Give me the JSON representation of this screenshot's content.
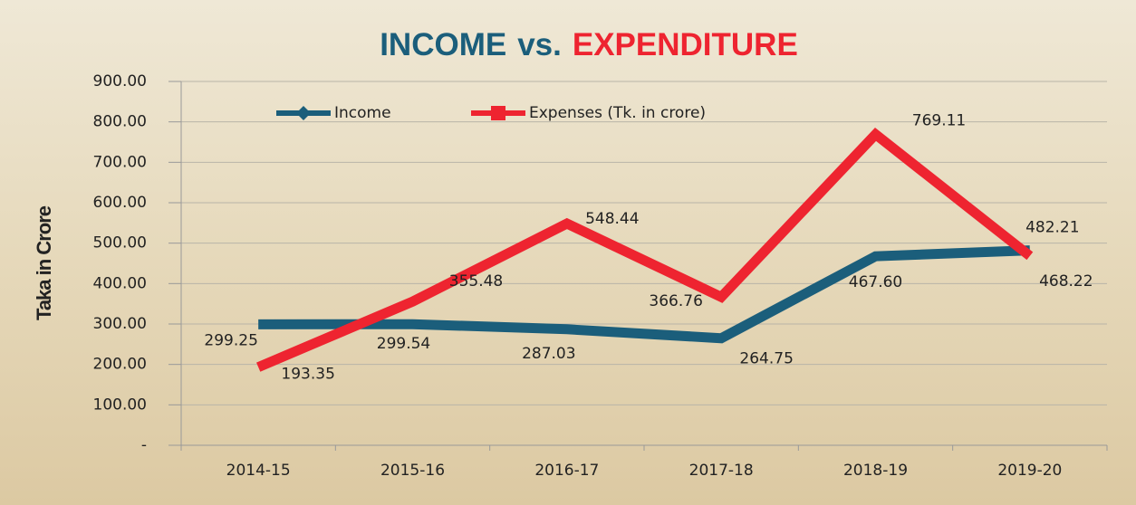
{
  "chart_data": {
    "type": "line",
    "title_parts": [
      {
        "text": "INCOME",
        "color": "#1b5e7b"
      },
      {
        "text": "vs.",
        "color": "#1b5e7b"
      },
      {
        "text": "EXPENDITURE",
        "color": "#ee2430"
      }
    ],
    "y_label": "Taka in Crore",
    "categories": [
      "2014-15",
      "2015-16",
      "2016-17",
      "2017-18",
      "2018-19",
      "2019-20"
    ],
    "series": [
      {
        "name": "Income",
        "color": "#1b5e7b",
        "marker": "diamond",
        "values": [
          299.25,
          299.54,
          287.03,
          264.75,
          467.6,
          482.21
        ],
        "value_labels": [
          "299.25",
          "299.54",
          "287.03",
          "264.75",
          "467.60",
          "482.21"
        ]
      },
      {
        "name": "Expenses (Tk. in crore)",
        "color": "#ee2430",
        "marker": "square",
        "values": [
          193.35,
          355.48,
          548.44,
          366.76,
          769.11,
          468.22
        ],
        "value_labels": [
          "193.35",
          "355.48",
          "548.44",
          "366.76",
          "769.11",
          "468.22"
        ]
      }
    ],
    "ylim": [
      0,
      900
    ],
    "yticks": [
      {
        "value": 0,
        "label": "-"
      },
      {
        "value": 100,
        "label": "100.00"
      },
      {
        "value": 200,
        "label": "200.00"
      },
      {
        "value": 300,
        "label": "300.00"
      },
      {
        "value": 400,
        "label": "400.00"
      },
      {
        "value": 500,
        "label": "500.00"
      },
      {
        "value": 600,
        "label": "600.00"
      },
      {
        "value": 700,
        "label": "700.00"
      },
      {
        "value": 800,
        "label": "800.00"
      },
      {
        "value": 900,
        "label": "900.00"
      }
    ],
    "grid": true
  }
}
